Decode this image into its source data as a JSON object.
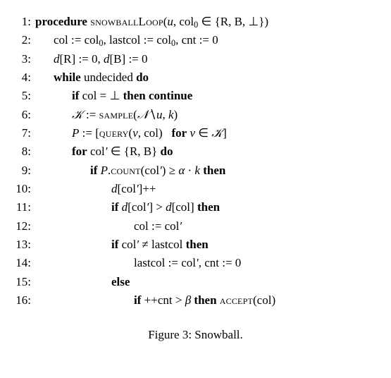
{
  "lines": [
    {
      "no": "1:"
    },
    {
      "no": "2:"
    },
    {
      "no": "3:"
    },
    {
      "no": "4:"
    },
    {
      "no": "5:"
    },
    {
      "no": "6:"
    },
    {
      "no": "7:"
    },
    {
      "no": "8:"
    },
    {
      "no": "9:"
    },
    {
      "no": "10:"
    },
    {
      "no": "11:"
    },
    {
      "no": "12:"
    },
    {
      "no": "13:"
    },
    {
      "no": "14:"
    },
    {
      "no": "15:"
    },
    {
      "no": "16:"
    }
  ],
  "t": {
    "procedure": "procedure",
    "snowballLoop": "snowballLoop",
    "u": "u",
    "col0": "col",
    "zero": "0",
    "in": "∈",
    "set1": "{R, B, ⊥}",
    "set2": "{R, B}",
    "col": "col",
    "assign": ":=",
    "lastcol": "lastcol",
    "cnt": "cnt",
    "d": "d",
    "R": "R",
    "B": "B",
    "eq0a": ":= 0",
    "eq0b": ":= 0",
    "eq0c": ":= 0",
    "eq0d": ":= 0",
    "while": "while",
    "undecided": "undecided",
    "do": "do",
    "if": "if",
    "eq": "=",
    "bot": "⊥",
    "then": "then",
    "continue": "continue",
    "K": "𝒦",
    "sample": "sample",
    "N": "𝒩",
    "setminus": "∖",
    "k": "k",
    "P": "P",
    "lbrack": "[",
    "rbrack": "]",
    "query": "query",
    "v": "v",
    "for": "for",
    "forkw": "for",
    "colp": "col",
    "prime": "′",
    "count": "count",
    "ge": "≥",
    "alpha": "α",
    "cdot": "·",
    "pp": "++",
    "gt": ">",
    "ne": "≠",
    "else": "else",
    "ppcnt": "++cnt",
    "beta": "β",
    "accept": "accept",
    "figcap": "Figure 3: Snowball.",
    "comma": ", ",
    "open": "(",
    "close": ")"
  }
}
